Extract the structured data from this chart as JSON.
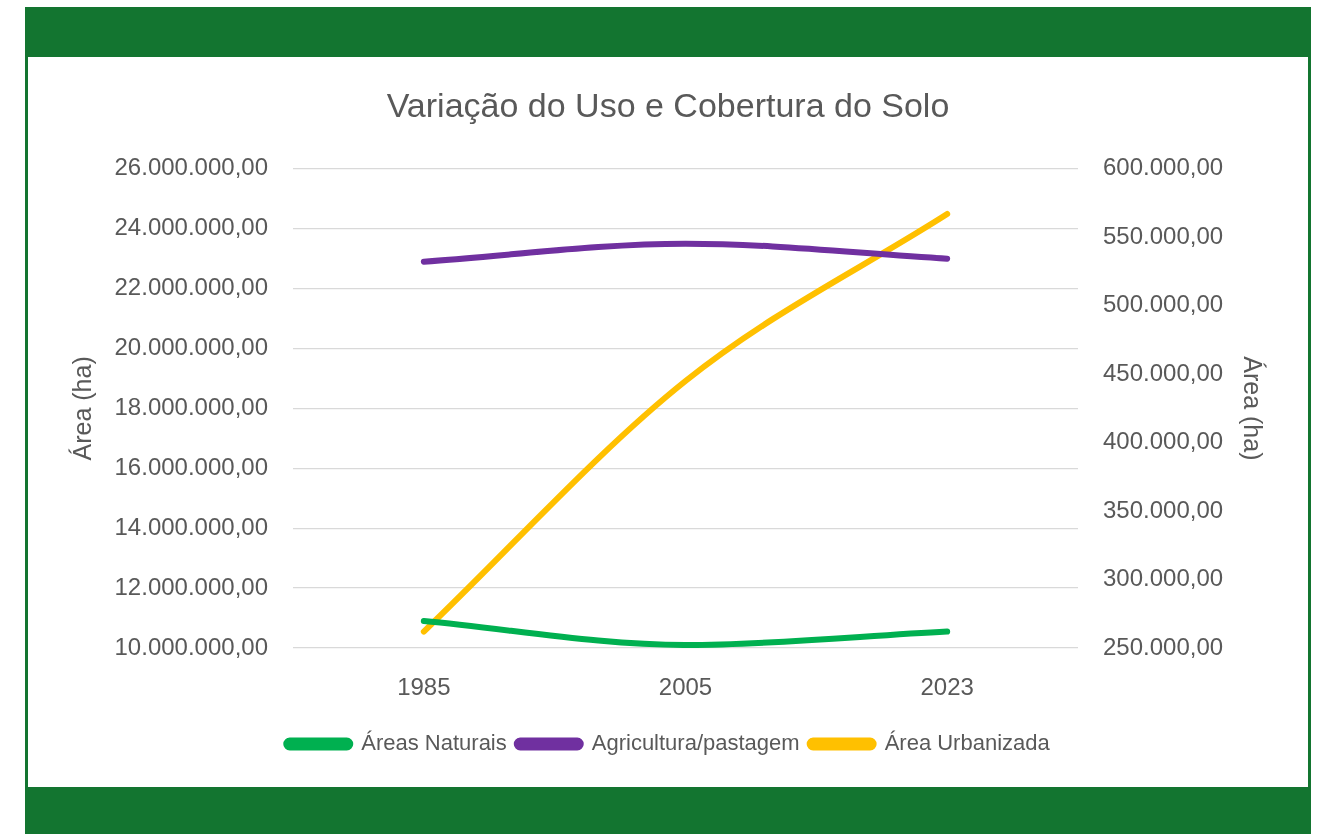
{
  "chart_data": {
    "type": "line",
    "title": "Variação do Uso e Cobertura do Solo",
    "ylabel": "Área (ha)",
    "y2label": "Área (ha)",
    "categories": [
      "1985",
      "2005",
      "2023"
    ],
    "series": [
      {
        "name": "Áreas Naturais",
        "color": "#00b050",
        "values": [
          10900000,
          10100000,
          10550000
        ]
      },
      {
        "name": "Agricultura/pastagem",
        "color": "#7030a0",
        "values": [
          22900000,
          23500000,
          23000000
        ]
      },
      {
        "name": "Área Urbanizada",
        "color": "#ffc000",
        "values": [
          262000,
          445000,
          567000
        ],
        "axis": "y2"
      }
    ],
    "ylim": [
      10000000,
      26000000
    ],
    "yticks": [
      {
        "value": 10000000,
        "label": "10.000.000,00"
      },
      {
        "value": 12000000,
        "label": "12.000.000,00"
      },
      {
        "value": 14000000,
        "label": "14.000.000,00"
      },
      {
        "value": 16000000,
        "label": "16.000.000,00"
      },
      {
        "value": 18000000,
        "label": "18.000.000,00"
      },
      {
        "value": 20000000,
        "label": "20.000.000,00"
      },
      {
        "value": 22000000,
        "label": "22.000.000,00"
      },
      {
        "value": 24000000,
        "label": "24.000.000,00"
      },
      {
        "value": 26000000,
        "label": "26.000.000,00"
      }
    ],
    "y2lim": [
      250000,
      600000
    ],
    "y2ticks": [
      {
        "value": 250000,
        "label": "250.000,00"
      },
      {
        "value": 300000,
        "label": "300.000,00"
      },
      {
        "value": 350000,
        "label": "350.000,00"
      },
      {
        "value": 400000,
        "label": "400.000,00"
      },
      {
        "value": 450000,
        "label": "450.000,00"
      },
      {
        "value": 500000,
        "label": "500.000,00"
      },
      {
        "value": 550000,
        "label": "550.000,00"
      },
      {
        "value": 600000,
        "label": "600.000,00"
      }
    ],
    "grid": "y",
    "legend": "bottom",
    "marker": "none",
    "line_style": "solid"
  }
}
